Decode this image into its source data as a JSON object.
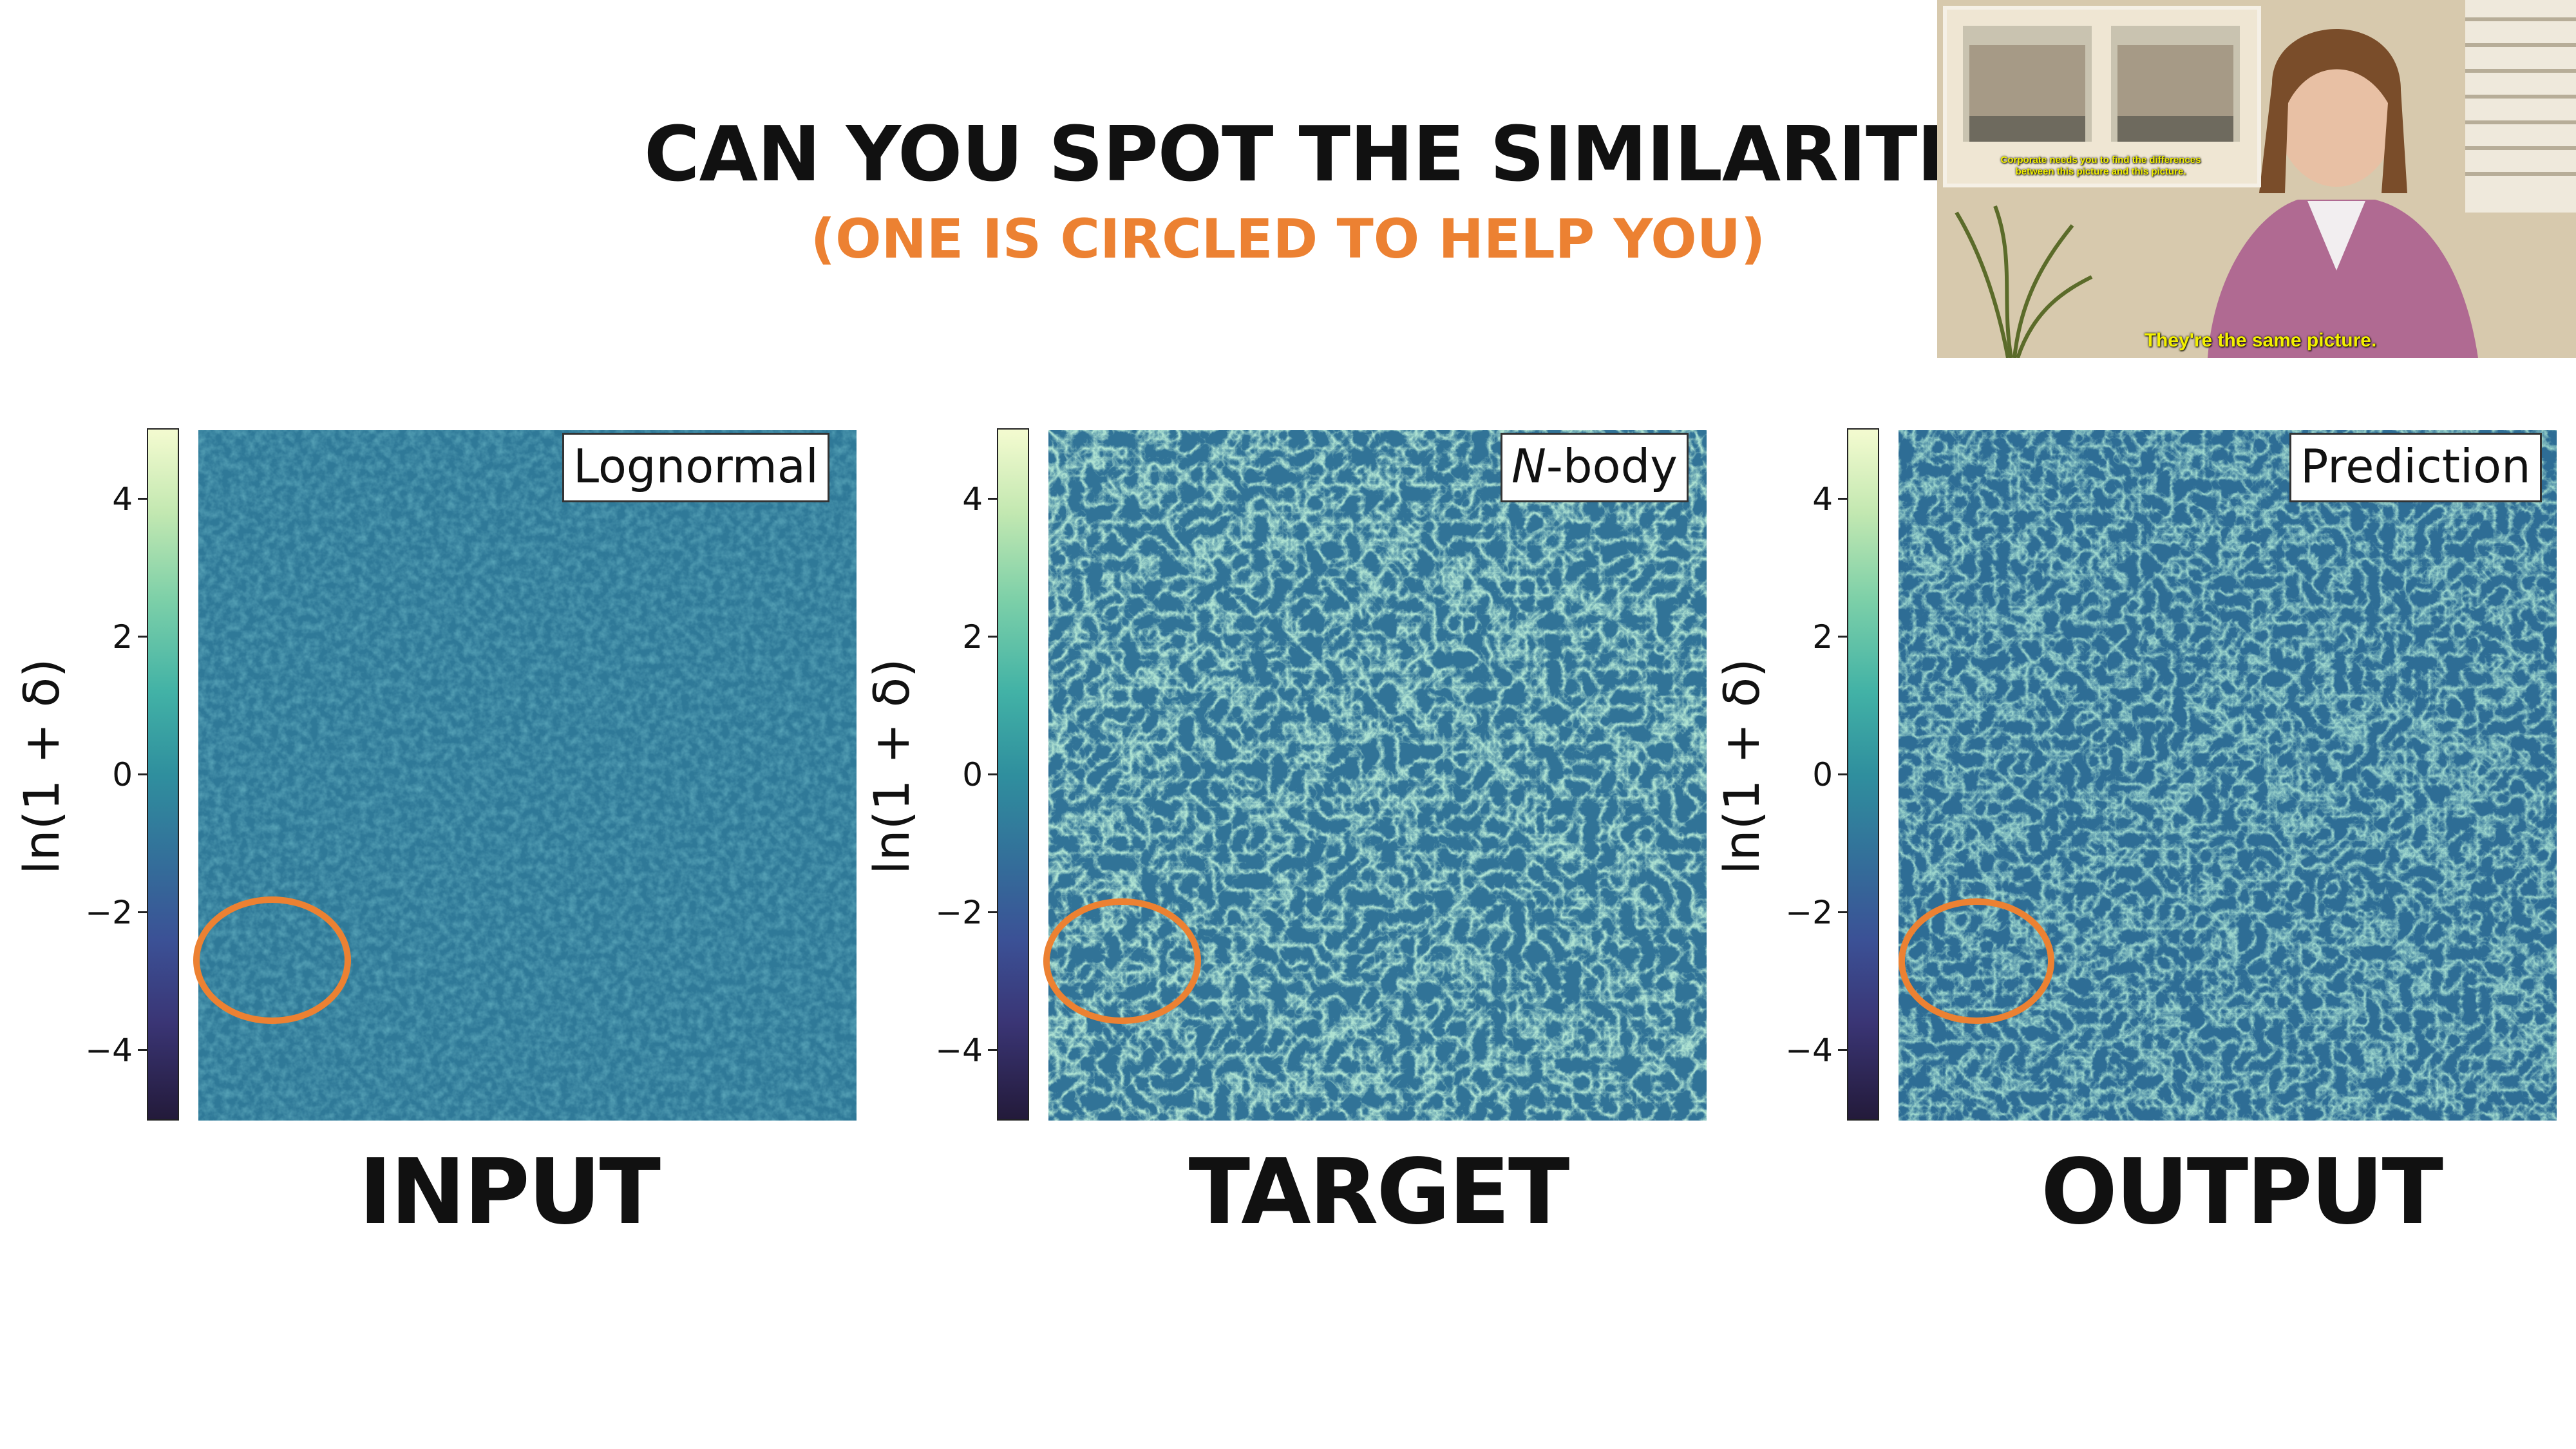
{
  "slide": {
    "title": "CAN YOU SPOT THE SIMILARITIES?",
    "subtitle": "(ONE IS CIRCLED TO HELP YOU)",
    "accent_color": "#ec8132"
  },
  "meme": {
    "subtitle_main": "They're the same picture.",
    "subtitle_small_line1": "Corporate needs you to find the differences",
    "subtitle_small_line2": "between this picture and this picture."
  },
  "colorbar": {
    "ylabel": "ln(1 + δ)",
    "ticks": [
      "4",
      "2",
      "0",
      "−2",
      "−4"
    ],
    "range": [
      -5,
      5
    ],
    "colormap": "cubehelix-green"
  },
  "panels": [
    {
      "label": "Lognormal",
      "caption": "INPUT"
    },
    {
      "label_italic": "N",
      "label_rest": "-body",
      "caption": "TARGET"
    },
    {
      "label": "Prediction",
      "caption": "OUTPUT"
    }
  ]
}
